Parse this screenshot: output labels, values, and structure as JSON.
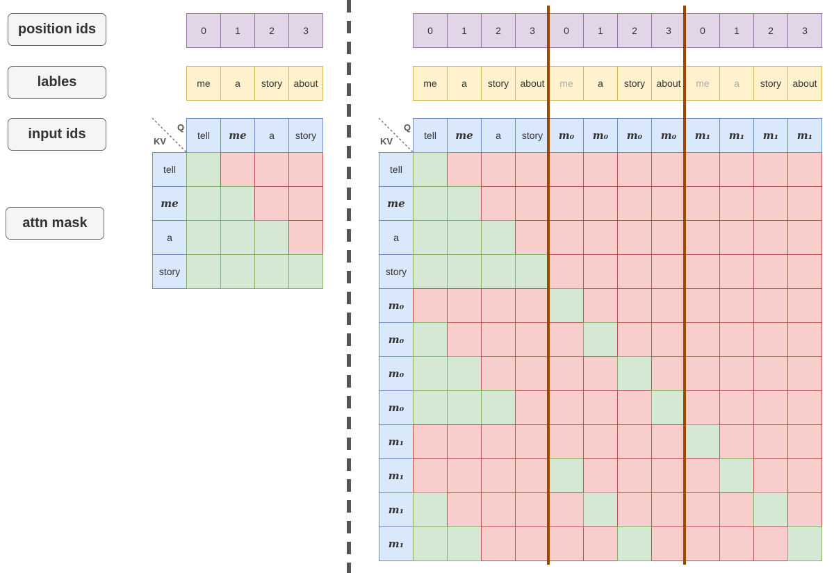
{
  "labels_panel": {
    "position_ids": "position ids",
    "labels": "lables",
    "input_ids": "input ids",
    "attn_mask": "attn mask"
  },
  "corner": {
    "q": "Q",
    "kv": "KV"
  },
  "colors": {
    "green": "#d5e8d4",
    "red": "#f8cecc",
    "purple": "#e1d5e7",
    "yellow": "#fff2cc",
    "blue": "#dae8fc",
    "separator": "#9a4a00"
  },
  "left": {
    "position_ids": [
      "0",
      "1",
      "2",
      "3"
    ],
    "labels": [
      "me",
      "a",
      "story",
      "about"
    ],
    "labels_grayed": [
      false,
      false,
      false,
      false
    ],
    "q_tokens": [
      "tell",
      "me",
      "a",
      "story"
    ],
    "kv_tokens": [
      "tell",
      "me",
      "a",
      "story"
    ],
    "mask": [
      [
        1,
        0,
        0,
        0
      ],
      [
        1,
        1,
        0,
        0
      ],
      [
        1,
        1,
        1,
        0
      ],
      [
        1,
        1,
        1,
        1
      ]
    ]
  },
  "right": {
    "position_ids": [
      "0",
      "1",
      "2",
      "3",
      "0",
      "1",
      "2",
      "3",
      "0",
      "1",
      "2",
      "3"
    ],
    "labels": [
      "me",
      "a",
      "story",
      "about",
      "me",
      "a",
      "story",
      "about",
      "me",
      "a",
      "story",
      "about"
    ],
    "labels_grayed": [
      false,
      false,
      false,
      false,
      true,
      false,
      false,
      false,
      true,
      true,
      false,
      false
    ],
    "q_tokens": [
      "tell",
      "me",
      "a",
      "story",
      "m₀",
      "m₀",
      "m₀",
      "m₀",
      "m₁",
      "m₁",
      "m₁",
      "m₁"
    ],
    "kv_tokens": [
      "tell",
      "me",
      "a",
      "story",
      "m₀",
      "m₀",
      "m₀",
      "m₀",
      "m₁",
      "m₁",
      "m₁",
      "m₁"
    ],
    "mask": [
      [
        1,
        0,
        0,
        0,
        0,
        0,
        0,
        0,
        0,
        0,
        0,
        0
      ],
      [
        1,
        1,
        0,
        0,
        0,
        0,
        0,
        0,
        0,
        0,
        0,
        0
      ],
      [
        1,
        1,
        1,
        0,
        0,
        0,
        0,
        0,
        0,
        0,
        0,
        0
      ],
      [
        1,
        1,
        1,
        1,
        0,
        0,
        0,
        0,
        0,
        0,
        0,
        0
      ],
      [
        0,
        0,
        0,
        0,
        1,
        0,
        0,
        0,
        0,
        0,
        0,
        0
      ],
      [
        1,
        0,
        0,
        0,
        0,
        1,
        0,
        0,
        0,
        0,
        0,
        0
      ],
      [
        1,
        1,
        0,
        0,
        0,
        0,
        1,
        0,
        0,
        0,
        0,
        0
      ],
      [
        1,
        1,
        1,
        0,
        0,
        0,
        0,
        1,
        0,
        0,
        0,
        0
      ],
      [
        0,
        0,
        0,
        0,
        0,
        0,
        0,
        0,
        1,
        0,
        0,
        0
      ],
      [
        0,
        0,
        0,
        0,
        1,
        0,
        0,
        0,
        0,
        1,
        0,
        0
      ],
      [
        1,
        0,
        0,
        0,
        0,
        1,
        0,
        0,
        0,
        0,
        1,
        0
      ],
      [
        1,
        1,
        0,
        0,
        0,
        0,
        1,
        0,
        0,
        0,
        0,
        1
      ]
    ]
  }
}
